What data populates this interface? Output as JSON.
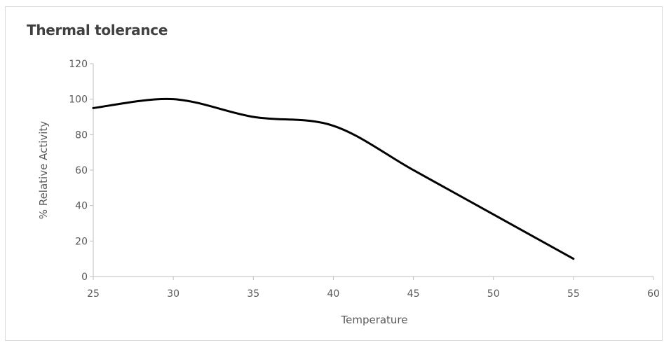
{
  "chart_data": {
    "type": "line",
    "title": "Thermal tolerance",
    "xlabel": "Temperature",
    "ylabel": "% Relative Activity",
    "x": [
      25,
      30,
      35,
      40,
      45,
      50,
      55
    ],
    "series": [
      {
        "values": [
          95,
          100,
          90,
          85,
          60,
          35,
          10
        ]
      }
    ],
    "xlim": [
      25,
      60
    ],
    "ylim": [
      0,
      120
    ],
    "xticks": [
      25,
      30,
      35,
      40,
      45,
      50,
      55,
      60
    ],
    "yticks": [
      0,
      20,
      40,
      60,
      80,
      100,
      120
    ],
    "grid": false,
    "smooth": true,
    "line_color": "#000000",
    "axis_color": "#bfbfbf",
    "text_color": "#595959",
    "title_color": "#404040"
  }
}
